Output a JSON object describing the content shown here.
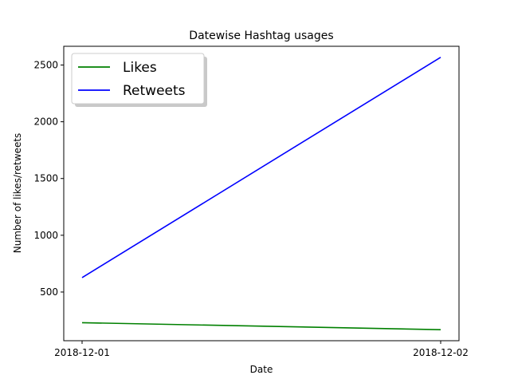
{
  "chart_data": {
    "type": "line",
    "title": "Datewise Hashtag usages",
    "xlabel": "Date",
    "ylabel": "Number of likes/retweets",
    "x": [
      "2018-12-01",
      "2018-12-02"
    ],
    "series": [
      {
        "name": "Likes",
        "values": [
          230,
          168
        ],
        "color": "#008000"
      },
      {
        "name": "Retweets",
        "values": [
          627,
          2568
        ],
        "color": "#0000ff"
      }
    ],
    "ylim": [
      71,
      2665
    ],
    "yticks": [
      500,
      1000,
      1500,
      2000,
      2500
    ],
    "grid": false,
    "legend_position": "top-left"
  }
}
